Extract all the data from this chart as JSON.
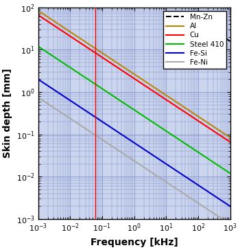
{
  "xlabel": "Frequency [kHz]",
  "ylabel": "Skin depth [mm]",
  "xlim": [
    0.001,
    1000.0
  ],
  "ylim": [
    0.001,
    100
  ],
  "vline_x": 0.06,
  "vline_color": "#ff0000",
  "background_color": "#ccd5ee",
  "grid_color": "#7788cc",
  "materials": [
    {
      "label": "Mn-Zn",
      "color": "#000000",
      "linestyle": "--",
      "delta_ref_mm": 500,
      "f_ref_khz": 1,
      "x_start": 80,
      "x_end": 1000
    },
    {
      "label": "Al",
      "color": "#b8860b",
      "linestyle": "-",
      "delta_ref_mm": 84.0,
      "f_ref_khz": 0.001,
      "x_start": 0.001,
      "x_end": 1000.0
    },
    {
      "label": "Cu",
      "color": "#ff0000",
      "linestyle": "-",
      "delta_ref_mm": 66.0,
      "f_ref_khz": 0.001,
      "x_start": 0.001,
      "x_end": 1000.0
    },
    {
      "label": "Steel 410",
      "color": "#00bb00",
      "linestyle": "-",
      "delta_ref_mm": 12.0,
      "f_ref_khz": 0.001,
      "x_start": 0.001,
      "x_end": 1000.0
    },
    {
      "label": "Fe-Si",
      "color": "#0000cc",
      "linestyle": "-",
      "delta_ref_mm": 2.0,
      "f_ref_khz": 0.001,
      "x_start": 0.001,
      "x_end": 1000.0
    },
    {
      "label": "Fe-Ni",
      "color": "#aaaaaa",
      "linestyle": "-",
      "delta_ref_mm": 0.75,
      "f_ref_khz": 0.001,
      "x_start": 0.001,
      "x_end": 1000.0
    }
  ]
}
